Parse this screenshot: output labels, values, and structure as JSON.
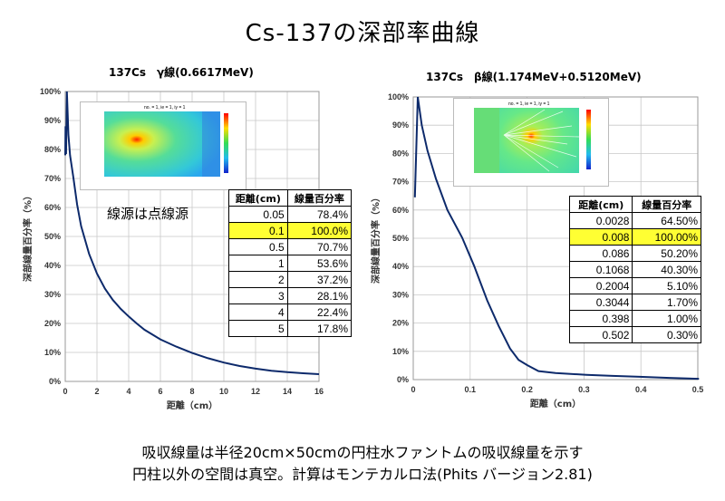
{
  "title": "Cs-137の深部率曲線",
  "footer": {
    "line1": "吸収線量は半径20cm×50cmの円柱水ファントムの吸収線量を示す",
    "line2": "円柱以外の空間は真空。計算はモンテカルロ法(Phits バージョン2.81)"
  },
  "chart_data": [
    {
      "type": "line",
      "title": "137Cs　γ線(0.6617MeV)",
      "xlabel": "距離（cm）",
      "ylabel": "深部線量百分率（%）",
      "xlim": [
        0,
        16
      ],
      "ylim": [
        0,
        100
      ],
      "xticks": [
        "0",
        "2",
        "4",
        "6",
        "8",
        "10",
        "12",
        "14",
        "16"
      ],
      "yticks": [
        "0%",
        "10%",
        "20%",
        "30%",
        "40%",
        "50%",
        "60%",
        "70%",
        "80%",
        "90%",
        "100%"
      ],
      "grid": true,
      "note": "線源は点線源",
      "inset_label": "no. = 1, ie = 1, iy = 1",
      "table": {
        "headers": [
          "距離(cm)",
          "線量百分率"
        ],
        "rows": [
          [
            "0.05",
            "78.4%"
          ],
          [
            "0.1",
            "100.0%"
          ],
          [
            "0.5",
            "70.7%"
          ],
          [
            "1",
            "53.6%"
          ],
          [
            "2",
            "37.2%"
          ],
          [
            "3",
            "28.1%"
          ],
          [
            "4",
            "22.4%"
          ],
          [
            "5",
            "17.8%"
          ]
        ],
        "highlight_row": 1
      },
      "x": [
        0,
        0.02,
        0.05,
        0.1,
        0.15,
        0.2,
        0.3,
        0.5,
        0.75,
        1,
        1.5,
        2,
        2.5,
        3,
        3.5,
        4,
        4.5,
        5,
        6,
        7,
        8,
        9,
        10,
        11,
        12,
        13,
        14,
        15,
        16
      ],
      "y": [
        78,
        88,
        78.4,
        100,
        93,
        85,
        78,
        70.7,
        61,
        53.6,
        44,
        37.2,
        32,
        28.1,
        25,
        22.4,
        20,
        17.8,
        14.5,
        12,
        9.8,
        8,
        6.5,
        5.3,
        4.4,
        3.7,
        3.2,
        2.8,
        2.5
      ]
    },
    {
      "type": "line",
      "title": "137Cs　β線(1.174MeV+0.5120MeV)",
      "xlabel": "距離（cm）",
      "ylabel": "深部線量百分率（%）",
      "xlim": [
        0,
        0.5
      ],
      "ylim": [
        0,
        100
      ],
      "xticks": [
        "0",
        "0.1",
        "0.2",
        "0.3",
        "0.4",
        "0.5"
      ],
      "yticks": [
        "0%",
        "10%",
        "20%",
        "30%",
        "40%",
        "50%",
        "60%",
        "70%",
        "80%",
        "90%",
        "100%"
      ],
      "grid": true,
      "inset_label": "no. = 1, ie = 1, iy = 1",
      "table": {
        "headers": [
          "距離(cm)",
          "線量百分率"
        ],
        "rows": [
          [
            "0.0028",
            "64.50%"
          ],
          [
            "0.008",
            "100.00%"
          ],
          [
            "0.086",
            "50.20%"
          ],
          [
            "0.1068",
            "40.30%"
          ],
          [
            "0.2004",
            "5.10%"
          ],
          [
            "0.3044",
            "1.70%"
          ],
          [
            "0.398",
            "1.00%"
          ],
          [
            "0.502",
            "0.30%"
          ]
        ],
        "highlight_row": 1
      },
      "x": [
        0.0028,
        0.008,
        0.015,
        0.025,
        0.04,
        0.06,
        0.086,
        0.1068,
        0.13,
        0.15,
        0.17,
        0.185,
        0.2004,
        0.22,
        0.25,
        0.3044,
        0.35,
        0.398,
        0.45,
        0.502
      ],
      "y": [
        64.5,
        100,
        90,
        81,
        71,
        60,
        50.2,
        40.3,
        28,
        19,
        11,
        7,
        5.1,
        3,
        2.3,
        1.7,
        1.3,
        1.0,
        0.6,
        0.3
      ]
    }
  ]
}
